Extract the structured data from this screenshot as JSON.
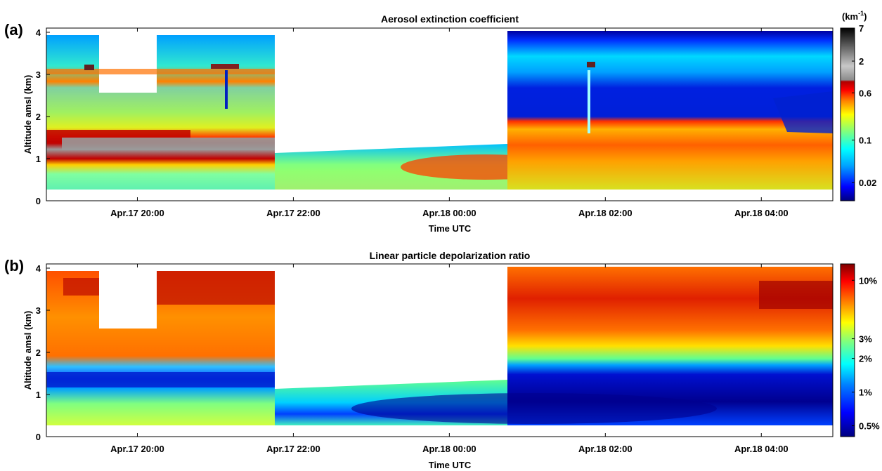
{
  "chart_data": [
    {
      "panel_label": "(a)",
      "type": "heatmap",
      "title": "Aerosol extinction coefficient",
      "xlabel": "Time UTC",
      "ylabel": "Altitude amsl (km)",
      "xlim": [
        "Apr.17 18:50",
        "Apr.18 04:55"
      ],
      "ylim": [
        0,
        4.1
      ],
      "x_ticks": [
        "Apr.17 20:00",
        "Apr.17 22:00",
        "Apr.18 00:00",
        "Apr.18 02:00",
        "Apr.18 04:00"
      ],
      "y_ticks": [
        "0",
        "1",
        "2",
        "3",
        "4"
      ],
      "colorbar": {
        "unit_label": "(km",
        "unit_exponent": "-1",
        "unit_close": ")",
        "scale": "log",
        "range": [
          0.01,
          7
        ],
        "tick_labels": [
          "7",
          "2",
          "0.6",
          "0.1",
          "0.02"
        ],
        "tick_values": [
          7,
          2,
          0.6,
          0.1,
          0.02
        ]
      },
      "layers": [
        {
          "feature": "elevated aerosol layer near 3.1 km",
          "x_range": [
            "Apr.17 18:50",
            "Apr.17 21:50"
          ],
          "altitude_km": [
            3.0,
            3.2
          ],
          "value_km-1": 0.6
        },
        {
          "feature": "dense aerosol layer",
          "x_range": [
            "Apr.17 18:50",
            "Apr.17 21:50"
          ],
          "altitude_km": [
            1.1,
            1.7
          ],
          "value_km-1": 2
        },
        {
          "feature": "planetary boundary layer",
          "x_range": [
            "Apr.17 18:50",
            "Apr.18 04:55"
          ],
          "altitude_km": [
            0.3,
            1.1
          ],
          "value_km-1": 0.1
        },
        {
          "feature": "enhanced aerosol layer",
          "x_range": [
            "Apr.18 00:00",
            "Apr.18 04:55"
          ],
          "altitude_km": [
            0.5,
            1.6
          ],
          "value_km-1": 0.3
        },
        {
          "feature": "clean free troposphere",
          "x_range": [
            "Apr.18 00:50",
            "Apr.18 04:55"
          ],
          "altitude_km": [
            1.7,
            3.8
          ],
          "value_km-1": 0.02
        }
      ]
    },
    {
      "panel_label": "(b)",
      "type": "heatmap",
      "title": "Linear particle depolarization ratio",
      "xlabel": "Time UTC",
      "ylabel": "Altitude amsl (km)",
      "xlim": [
        "Apr.17 18:50",
        "Apr.18 04:55"
      ],
      "ylim": [
        0,
        4.1
      ],
      "x_ticks": [
        "Apr.17 20:00",
        "Apr.17 22:00",
        "Apr.18 00:00",
        "Apr.18 02:00",
        "Apr.18 04:00"
      ],
      "y_ticks": [
        "0",
        "1",
        "2",
        "3",
        "4"
      ],
      "colorbar": {
        "scale": "log",
        "range": [
          0.004,
          0.14
        ],
        "tick_labels": [
          "10%",
          "3%",
          "2%",
          "1%",
          "0.5%"
        ],
        "tick_values": [
          0.1,
          0.03,
          0.02,
          0.01,
          0.005
        ]
      },
      "layers": [
        {
          "feature": "high depolarization aloft",
          "x_range": [
            "Apr.17 18:50",
            "Apr.18 04:55"
          ],
          "altitude_km": [
            2.0,
            4.0
          ],
          "value": 0.08
        },
        {
          "feature": "low depolarization layer",
          "x_range": [
            "Apr.17 18:50",
            "Apr.17 21:50"
          ],
          "altitude_km": [
            1.0,
            1.6
          ],
          "value": 0.007
        },
        {
          "feature": "low depolarization boundary layer",
          "x_range": [
            "Apr.18 00:00",
            "Apr.18 04:55"
          ],
          "altitude_km": [
            0.3,
            1.5
          ],
          "value": 0.005
        },
        {
          "feature": "intermediate layer",
          "x_range": [
            "Apr.18 00:50",
            "Apr.18 04:55"
          ],
          "altitude_km": [
            1.6,
            2.4
          ],
          "value": 0.025
        }
      ]
    }
  ],
  "palette": {
    "cmap_a": [
      "#00007f",
      "#0000ff",
      "#007fff",
      "#00ffff",
      "#7fff7f",
      "#ffff00",
      "#ff7f00",
      "#ff0000",
      "#a80000",
      "#6e6e6e",
      "#b4b4b4",
      "#000000"
    ],
    "cmap_b": [
      "#00007f",
      "#0000ff",
      "#007fff",
      "#00ffff",
      "#7fff7f",
      "#ffff00",
      "#ff7f00",
      "#ff0000",
      "#7f0000"
    ]
  }
}
